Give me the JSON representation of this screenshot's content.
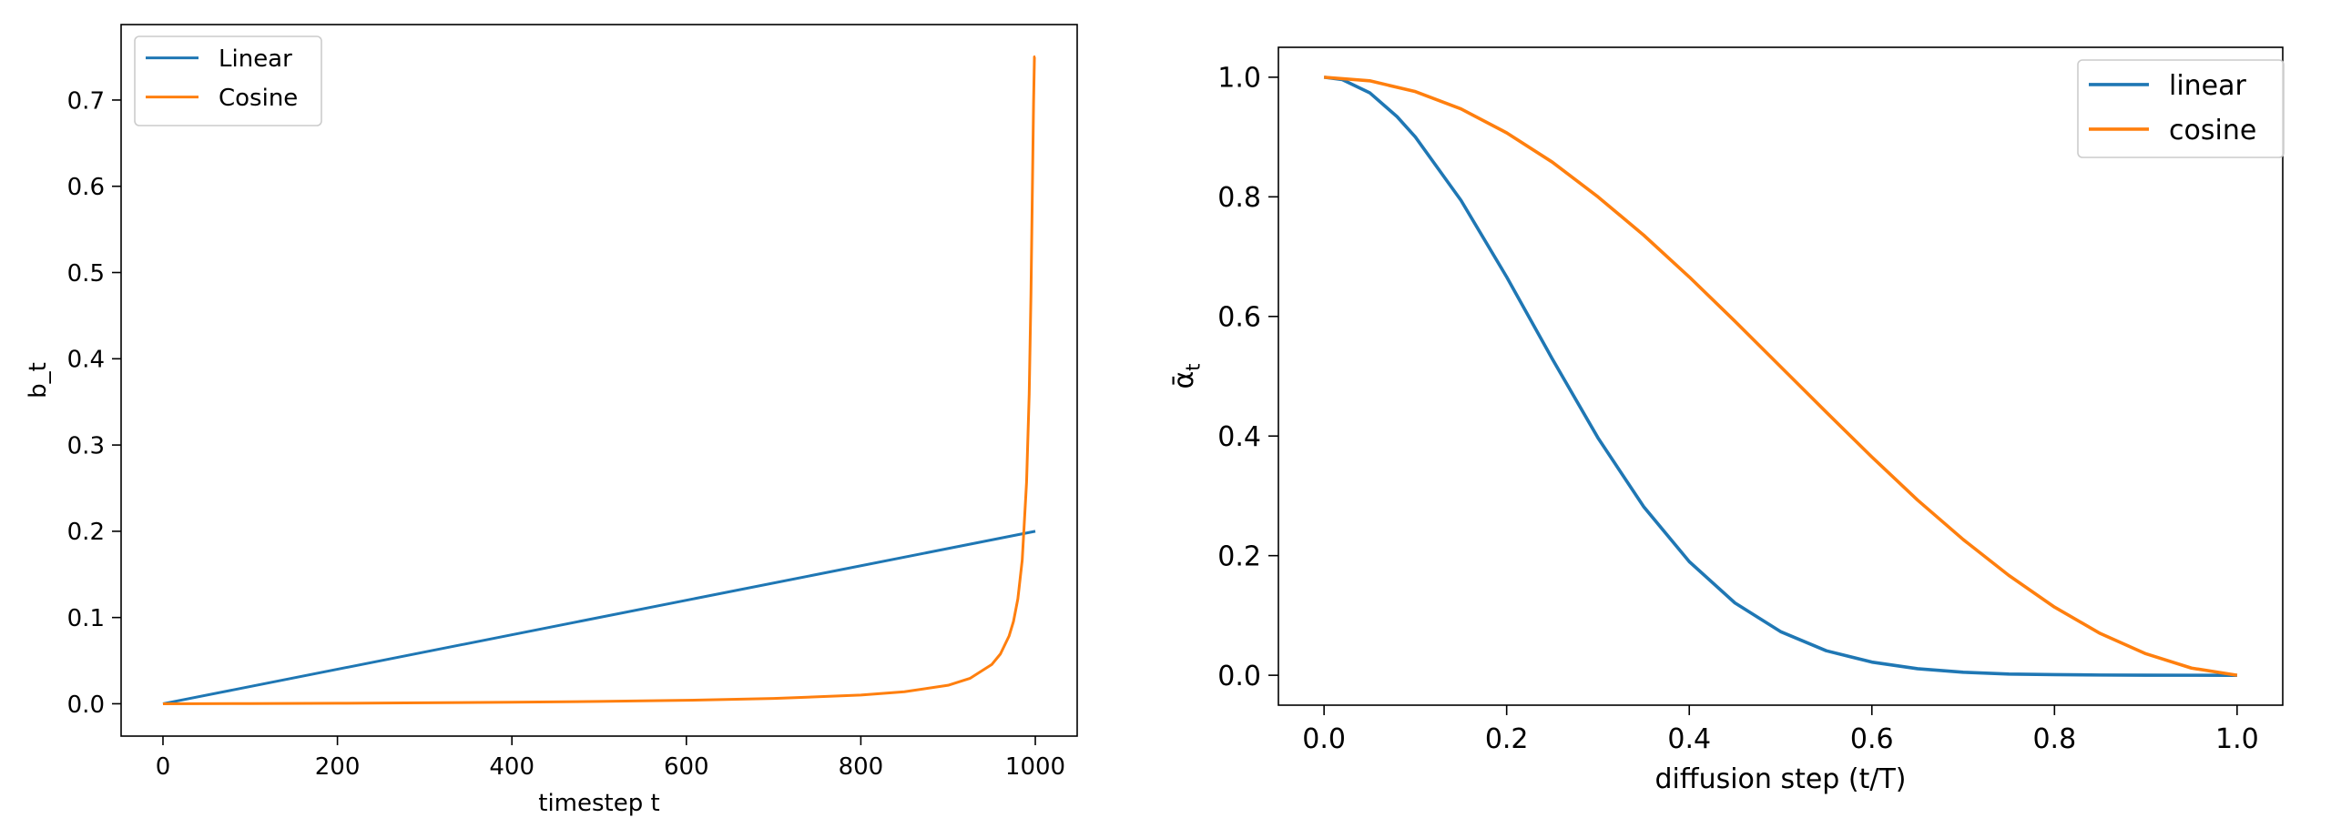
{
  "chart_data": [
    {
      "type": "line",
      "title": "",
      "xlabel": "timestep t",
      "ylabel": "b_t",
      "xlim": [
        -48,
        1048
      ],
      "ylim": [
        -0.0375,
        0.7875
      ],
      "xticks": [
        0,
        200,
        400,
        600,
        800,
        1000
      ],
      "xtick_labels": [
        "0",
        "200",
        "400",
        "600",
        "800",
        "1000"
      ],
      "yticks": [
        0.0,
        0.1,
        0.2,
        0.3,
        0.4,
        0.5,
        0.6,
        0.7
      ],
      "ytick_labels": [
        "0.0",
        "0.1",
        "0.2",
        "0.3",
        "0.4",
        "0.5",
        "0.6",
        "0.7"
      ],
      "grid": false,
      "legend_position": "top-left",
      "series": [
        {
          "name": "Linear",
          "color": "#1f77b4",
          "x": [
            0,
            1000
          ],
          "y": [
            0.0,
            0.2
          ]
        },
        {
          "name": "Cosine",
          "color": "#ff7f0e",
          "x": [
            0,
            100,
            200,
            300,
            400,
            500,
            600,
            700,
            800,
            850,
            900,
            925,
            950,
            960,
            970,
            975,
            980,
            985,
            990,
            993,
            995,
            997,
            998,
            999,
            1000
          ],
          "y": [
            0.0,
            0.0002,
            0.0006,
            0.0011,
            0.0018,
            0.0027,
            0.004,
            0.0061,
            0.0101,
            0.0139,
            0.0214,
            0.0294,
            0.0454,
            0.0577,
            0.0787,
            0.0955,
            0.1216,
            0.1664,
            0.2571,
            0.3589,
            0.4734,
            0.6225,
            0.6965,
            0.75,
            0.75
          ]
        }
      ]
    },
    {
      "type": "line",
      "title": "",
      "xlabel": "diffusion step (t/T)",
      "ylabel": "ᾱ",
      "ylabel_subscript": "t",
      "xlim": [
        -0.05,
        1.05
      ],
      "ylim": [
        -0.05,
        1.05
      ],
      "xticks": [
        0.0,
        0.2,
        0.4,
        0.6,
        0.8,
        1.0
      ],
      "xtick_labels": [
        "0.0",
        "0.2",
        "0.4",
        "0.6",
        "0.8",
        "1.0"
      ],
      "yticks": [
        0.0,
        0.2,
        0.4,
        0.6,
        0.8,
        1.0
      ],
      "ytick_labels": [
        "0.0",
        "0.2",
        "0.4",
        "0.6",
        "0.8",
        "1.0"
      ],
      "grid": false,
      "legend_position": "top-right",
      "series": [
        {
          "name": "linear",
          "color": "#1f77b4",
          "x": [
            0.0,
            0.02,
            0.05,
            0.08,
            0.1,
            0.15,
            0.2,
            0.25,
            0.3,
            0.35,
            0.4,
            0.45,
            0.5,
            0.55,
            0.6,
            0.65,
            0.7,
            0.75,
            0.8,
            0.85,
            0.9,
            0.95,
            1.0
          ],
          "y": [
            1.0,
            0.996,
            0.974,
            0.934,
            0.9,
            0.794,
            0.666,
            0.529,
            0.397,
            0.282,
            0.19,
            0.121,
            0.073,
            0.041,
            0.022,
            0.011,
            0.005,
            0.002,
            0.001,
            0.0004,
            0.0001,
            3e-05,
            0.0
          ]
        },
        {
          "name": "cosine",
          "color": "#ff7f0e",
          "x": [
            0.0,
            0.05,
            0.1,
            0.15,
            0.2,
            0.25,
            0.3,
            0.35,
            0.4,
            0.45,
            0.5,
            0.55,
            0.6,
            0.65,
            0.7,
            0.75,
            0.8,
            0.85,
            0.9,
            0.95,
            1.0
          ],
          "y": [
            1.0,
            0.994,
            0.976,
            0.947,
            0.907,
            0.858,
            0.8,
            0.736,
            0.666,
            0.592,
            0.516,
            0.44,
            0.365,
            0.293,
            0.227,
            0.167,
            0.114,
            0.07,
            0.036,
            0.012,
            0.0
          ]
        }
      ]
    }
  ]
}
